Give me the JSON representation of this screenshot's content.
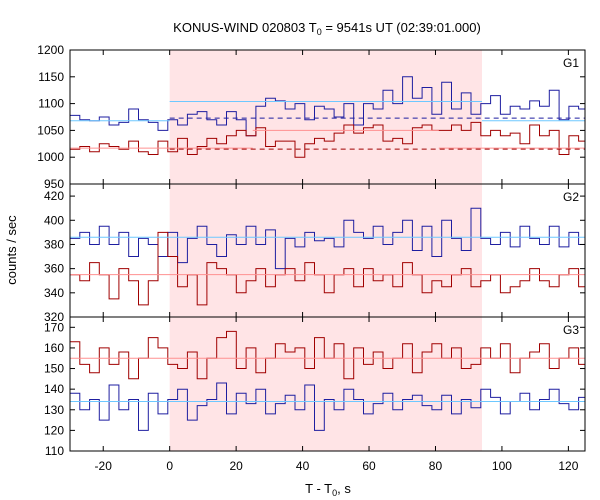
{
  "figure": {
    "title_main": "KONUS-WIND 020803 T",
    "title_sub": "0",
    "title_rest": " = 9541s UT (02:39:01.000)",
    "ylabel": "counts / sec",
    "xlabel_main": "T - T",
    "xlabel_sub": "0",
    "xlabel_rest": ", s"
  },
  "chart_data": {
    "type": "line",
    "x_range": [
      -30,
      125
    ],
    "x_ticks": [
      -20,
      0,
      20,
      40,
      60,
      80,
      100,
      120
    ],
    "bin_width": 2.944,
    "x_start": -30,
    "shaded_interval": [
      0,
      94
    ],
    "colors": {
      "blue": "#1e1ea0",
      "red": "#a00000",
      "lightblue": "#6ec8ff",
      "pink": "#ff9090",
      "shade": "#ffe4e6"
    },
    "panels": [
      {
        "label": "G1",
        "ylim": [
          950,
          1200
        ],
        "y_ticks": [
          950,
          1000,
          1050,
          1100,
          1150,
          1200
        ],
        "series": [
          {
            "color": "blue",
            "values": [
              1078,
              1070,
              1068,
              1075,
              1060,
              1065,
              1090,
              1070,
              1065,
              1050,
              1070,
              1060,
              1080,
              1085,
              1070,
              1060,
              1085,
              1070,
              1040,
              1095,
              1110,
              1105,
              1090,
              1100,
              1070,
              1095,
              1090,
              1075,
              1100,
              1060,
              1100,
              1090,
              1125,
              1100,
              1150,
              1110,
              1130,
              1080,
              1140,
              1090,
              1120,
              1080,
              1100,
              1115,
              1080,
              1095,
              1090,
              1105,
              1095,
              1125,
              1070,
              1095,
              1090,
              1100,
              1080,
              1100,
              1100,
              1090,
              1105,
              1100,
              1105,
              1095,
              1100,
              1080,
              1060,
              1065,
              1085,
              1060,
              1070,
              1060,
              1070,
              1080,
              1065,
              1060,
              1065,
              1060,
              1095,
              1060,
              1040,
              1060,
              1060,
              1070,
              1040
            ]
          },
          {
            "color": "red",
            "values": [
              1015,
              1020,
              1010,
              1025,
              1020,
              1015,
              1030,
              1010,
              1005,
              1030,
              1010,
              1035,
              1005,
              1020,
              1035,
              1025,
              1040,
              1050,
              1040,
              1055,
              1020,
              1030,
              1030,
              1000,
              1025,
              1035,
              1030,
              1045,
              1060,
              1045,
              1055,
              1060,
              1030,
              1035,
              1025,
              1055,
              1060,
              1050,
              1050,
              1060,
              1050,
              1065,
              1040,
              1050,
              1040,
              1045,
              1025,
              1060,
              1040,
              1050,
              1005,
              1040,
              1030,
              1030,
              1025,
              1020,
              1010,
              1035,
              1005,
              1020,
              1000,
              1030,
              1020,
              1030,
              1010,
              1040,
              1000,
              1020,
              1020,
              1025,
              1010,
              1030,
              1030,
              1015,
              1020,
              1010,
              1050,
              1010,
              1030,
              1000,
              1020,
              1010,
              1025
            ]
          }
        ],
        "fits": [
          {
            "color": "lightblue",
            "style": "solid",
            "segments": [
              [
                -30,
                0,
                1068
              ],
              [
                0,
                94,
                1104
              ],
              [
                94,
                125,
                1068
              ]
            ]
          },
          {
            "color": "blue",
            "style": "dash",
            "segments": [
              [
                0,
                125,
                1073
              ]
            ]
          },
          {
            "color": "pink",
            "style": "solid",
            "segments": [
              [
                -30,
                25,
                1017
              ],
              [
                25,
                81,
                1050
              ],
              [
                81,
                125,
                1017
              ]
            ]
          },
          {
            "color": "red",
            "style": "dash",
            "segments": [
              [
                0,
                125,
                1015
              ]
            ]
          }
        ]
      },
      {
        "label": "G2",
        "ylim": [
          320,
          430
        ],
        "y_ticks": [
          320,
          340,
          360,
          380,
          400,
          420
        ],
        "series": [
          {
            "color": "blue",
            "values": [
              385,
              390,
              380,
              395,
              380,
              390,
              370,
              385,
              380,
              370,
              390,
              365,
              385,
              395,
              380,
              370,
              388,
              380,
              395,
              380,
              392,
              360,
              385,
              378,
              390,
              383,
              385,
              378,
              400,
              390,
              385,
              395,
              380,
              390,
              400,
              375,
              395,
              370,
              400,
              385,
              375,
              410,
              385,
              380,
              390,
              378,
              395,
              385,
              380,
              395,
              378,
              390,
              380,
              395,
              370,
              385,
              380,
              395,
              380,
              390,
              385,
              380,
              392,
              385,
              380,
              390,
              380,
              395,
              385,
              380,
              375,
              390,
              380,
              385,
              378,
              390,
              380,
              385,
              375,
              400,
              385,
              378,
              380
            ]
          },
          {
            "color": "red",
            "values": [
              355,
              350,
              365,
              355,
              335,
              360,
              350,
              330,
              350,
              390,
              370,
              345,
              355,
              330,
              365,
              360,
              355,
              340,
              350,
              360,
              345,
              355,
              360,
              350,
              365,
              355,
              340,
              355,
              360,
              345,
              360,
              350,
              355,
              345,
              365,
              355,
              340,
              350,
              345,
              355,
              360,
              345,
              350,
              355,
              340,
              345,
              350,
              360,
              350,
              345,
              355,
              360,
              345,
              350,
              340,
              360,
              355,
              350,
              345,
              360,
              350,
              355,
              345,
              350,
              360,
              340,
              350,
              360,
              345,
              355,
              350,
              365,
              355,
              360,
              345,
              355,
              360,
              340,
              350,
              345,
              365,
              355,
              345
            ]
          }
        ],
        "fits": [
          {
            "color": "lightblue",
            "style": "solid",
            "segments": [
              [
                -30,
                125,
                386
              ]
            ]
          },
          {
            "color": "pink",
            "style": "solid",
            "segments": [
              [
                -30,
                125,
                355
              ]
            ]
          }
        ]
      },
      {
        "label": "G3",
        "ylim": [
          110,
          175
        ],
        "y_ticks": [
          110,
          120,
          130,
          140,
          150,
          160,
          170
        ],
        "series": [
          {
            "color": "red",
            "values": [
              163,
              152,
              148,
              160,
              152,
              158,
              145,
              155,
              165,
              160,
              152,
              150,
              158,
              145,
              155,
              165,
              168,
              150,
              160,
              148,
              155,
              162,
              158,
              160,
              150,
              165,
              155,
              162,
              145,
              160,
              152,
              158,
              150,
              155,
              162,
              148,
              158,
              162,
              155,
              160,
              150,
              152,
              160,
              155,
              162,
              148,
              155,
              158,
              162,
              150,
              155,
              160,
              152,
              158,
              148,
              165,
              155,
              158,
              162,
              150,
              155,
              158,
              160,
              152,
              155,
              148,
              158,
              162,
              150,
              155,
              160,
              148,
              158,
              155,
              162,
              150,
              152,
              160,
              158,
              148,
              155,
              162,
              150
            ]
          },
          {
            "color": "blue",
            "values": [
              138,
              130,
              135,
              125,
              142,
              130,
              135,
              120,
              138,
              128,
              135,
              140,
              125,
              132,
              135,
              143,
              128,
              138,
              133,
              140,
              128,
              133,
              137,
              130,
              142,
              120,
              135,
              130,
              140,
              135,
              128,
              133,
              138,
              130,
              135,
              137,
              132,
              130,
              137,
              128,
              135,
              131,
              140,
              136,
              128,
              134,
              138,
              130,
              135,
              140,
              133,
              130,
              136,
              128,
              138,
              131,
              135,
              142,
              130,
              136,
              134,
              128,
              138,
              132,
              135,
              140,
              130,
              136,
              138,
              125,
              134,
              132,
              140,
              130,
              136,
              128,
              135,
              138,
              130,
              134,
              136,
              130,
              120
            ]
          }
        ],
        "fits": [
          {
            "color": "pink",
            "style": "solid",
            "segments": [
              [
                -30,
                125,
                155
              ]
            ]
          },
          {
            "color": "lightblue",
            "style": "solid",
            "segments": [
              [
                -30,
                125,
                134
              ]
            ]
          }
        ]
      }
    ]
  }
}
